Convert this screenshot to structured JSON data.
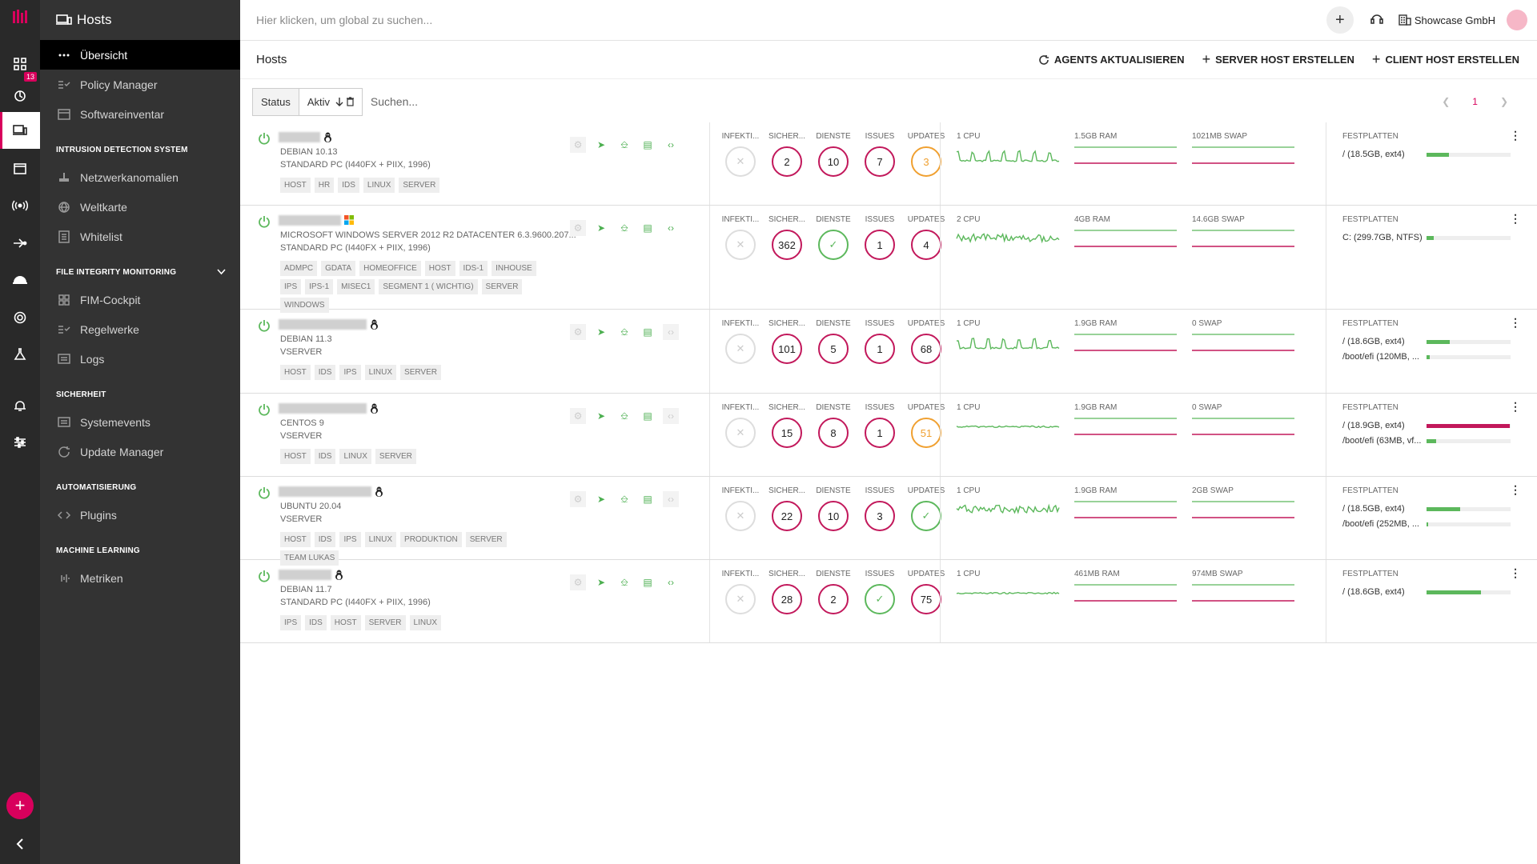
{
  "topbar": {
    "search_placeholder": "Hier klicken, um global zu suchen...",
    "company": "Showcase GmbH"
  },
  "rail": {
    "badge": "13"
  },
  "sidebar": {
    "header": "Hosts",
    "items_main": [
      {
        "label": "Übersicht",
        "icon": "dots-icon",
        "selected": true
      },
      {
        "label": "Policy Manager",
        "icon": "policy-icon"
      },
      {
        "label": "Softwareinventar",
        "icon": "inventory-icon"
      }
    ],
    "sections": [
      {
        "title": "INTRUSION DETECTION SYSTEM",
        "items": [
          {
            "label": "Netzwerkanomalien",
            "icon": "network-icon"
          },
          {
            "label": "Weltkarte",
            "icon": "globe-icon"
          },
          {
            "label": "Whitelist",
            "icon": "list-icon"
          }
        ]
      },
      {
        "title": "FILE INTEGRITY MONITORING",
        "items": [
          {
            "label": "FIM-Cockpit",
            "icon": "grid-icon"
          },
          {
            "label": "Regelwerke",
            "icon": "rules-icon"
          },
          {
            "label": "Logs",
            "icon": "logs-icon"
          }
        ]
      },
      {
        "title": "SICHERHEIT",
        "items": [
          {
            "label": "Systemevents",
            "icon": "events-icon"
          },
          {
            "label": "Update Manager",
            "icon": "update-icon"
          }
        ]
      },
      {
        "title": "AUTOMATISIERUNG",
        "items": [
          {
            "label": "Plugins",
            "icon": "code-icon"
          }
        ]
      },
      {
        "title": "MACHINE LEARNING",
        "items": [
          {
            "label": "Metriken",
            "icon": "metrics-icon"
          }
        ]
      }
    ]
  },
  "page": {
    "title": "Hosts",
    "actions": [
      "Agents aktualisieren",
      "Server Host erstellen",
      "Client Host erstellen"
    ]
  },
  "filter": {
    "key": "Status",
    "value": "Aktiv",
    "search_placeholder": "Suchen...",
    "page": "1"
  },
  "metric_labels": [
    "INFEKTI...",
    "SICHER...",
    "DIENSTE",
    "ISSUES",
    "UPDATES"
  ],
  "disk_label": "FESTPLATTEN",
  "colors": {
    "accent": "#d8005c",
    "green": "#5cb85c",
    "orange": "#f0a030",
    "ram": "#c2185b"
  },
  "hosts": [
    {
      "os": "linux",
      "line1": "DEBIAN 10.13",
      "line2": "STANDARD PC (I440FX + PIIX, 1996)",
      "tags": [
        "HOST",
        "HR",
        "IDS",
        "LINUX",
        "SERVER"
      ],
      "metrics": [
        {
          "v": "",
          "s": "gray",
          "x": true
        },
        {
          "v": "2",
          "s": "red"
        },
        {
          "v": "10",
          "s": "red"
        },
        {
          "v": "7",
          "s": "red"
        },
        {
          "v": "3",
          "s": "orange"
        }
      ],
      "cpu": "1 CPU",
      "ram": "1.5GB RAM",
      "swap": "1021MB SWAP",
      "disks": [
        {
          "name": "/ (18.5GB, ext4)",
          "pct": 0.27,
          "color": "#5cb85c"
        }
      ]
    },
    {
      "os": "windows",
      "line1": "MICROSOFT WINDOWS SERVER 2012 R2 DATACENTER 6.3.9600.207...",
      "line2": "STANDARD PC (I440FX + PIIX, 1996)",
      "tags": [
        "ADMPC",
        "GDATA",
        "HOMEOFFICE",
        "HOST",
        "IDS-1",
        "INHOUSE",
        "IPS",
        "IPS-1",
        "MISEC1",
        "SEGMENT 1 ( WICHTIG)",
        "SERVER",
        "WINDOWS"
      ],
      "metrics": [
        {
          "v": "",
          "s": "gray",
          "x": true
        },
        {
          "v": "362",
          "s": "red"
        },
        {
          "v": "",
          "s": "green",
          "check": true
        },
        {
          "v": "1",
          "s": "red"
        },
        {
          "v": "4",
          "s": "red"
        }
      ],
      "cpu": "2 CPU",
      "ram": "4GB RAM",
      "swap": "14.6GB SWAP",
      "disks": [
        {
          "name": "C: (299.7GB, NTFS)",
          "pct": 0.09,
          "color": "#5cb85c"
        }
      ]
    },
    {
      "os": "linux",
      "line1": "DEBIAN 11.3",
      "line2": "VSERVER",
      "tags": [
        "HOST",
        "IDS",
        "IPS",
        "LINUX",
        "SERVER"
      ],
      "metrics": [
        {
          "v": "",
          "s": "gray",
          "x": true
        },
        {
          "v": "101",
          "s": "red"
        },
        {
          "v": "5",
          "s": "red"
        },
        {
          "v": "1",
          "s": "red"
        },
        {
          "v": "68",
          "s": "red"
        }
      ],
      "cpu": "1 CPU",
      "ram": "1.9GB RAM",
      "swap": "0 SWAP",
      "disks": [
        {
          "name": "/ (18.6GB, ext4)",
          "pct": 0.28,
          "color": "#5cb85c"
        },
        {
          "name": "/boot/efi (120MB, ...",
          "pct": 0.04,
          "color": "#5cb85c"
        }
      ]
    },
    {
      "os": "linux",
      "line1": "CENTOS 9",
      "line2": "VSERVER",
      "tags": [
        "HOST",
        "IDS",
        "LINUX",
        "SERVER"
      ],
      "metrics": [
        {
          "v": "",
          "s": "gray",
          "x": true
        },
        {
          "v": "15",
          "s": "red"
        },
        {
          "v": "8",
          "s": "red"
        },
        {
          "v": "1",
          "s": "red"
        },
        {
          "v": "51",
          "s": "orange"
        }
      ],
      "cpu": "1 CPU",
      "ram": "1.9GB RAM",
      "swap": "0 SWAP",
      "disks": [
        {
          "name": "/ (18.9GB, ext4)",
          "pct": 0.99,
          "color": "#c2185b"
        },
        {
          "name": "/boot/efi (63MB, vf...",
          "pct": 0.11,
          "color": "#5cb85c"
        }
      ]
    },
    {
      "os": "linux",
      "line1": "UBUNTU 20.04",
      "line2": "VSERVER",
      "tags": [
        "HOST",
        "IDS",
        "IPS",
        "LINUX",
        "PRODUKTION",
        "SERVER",
        "TEAM LUKAS"
      ],
      "metrics": [
        {
          "v": "",
          "s": "gray",
          "x": true
        },
        {
          "v": "22",
          "s": "red"
        },
        {
          "v": "10",
          "s": "red"
        },
        {
          "v": "3",
          "s": "red"
        },
        {
          "v": "",
          "s": "green",
          "check": true
        }
      ],
      "cpu": "1 CPU",
      "ram": "1.9GB RAM",
      "swap": "2GB SWAP",
      "disks": [
        {
          "name": "/ (18.5GB, ext4)",
          "pct": 0.4,
          "color": "#5cb85c"
        },
        {
          "name": "/boot/efi (252MB, ...",
          "pct": 0.02,
          "color": "#5cb85c"
        }
      ]
    },
    {
      "os": "linux",
      "line1": "DEBIAN 11.7",
      "line2": "STANDARD PC (I440FX + PIIX, 1996)",
      "tags": [
        "IPS",
        "IDS",
        "HOST",
        "SERVER",
        "LINUX"
      ],
      "metrics": [
        {
          "v": "",
          "s": "gray",
          "x": true
        },
        {
          "v": "28",
          "s": "red"
        },
        {
          "v": "2",
          "s": "red"
        },
        {
          "v": "",
          "s": "green",
          "check": true
        },
        {
          "v": "75",
          "s": "red"
        }
      ],
      "cpu": "1 CPU",
      "ram": "461MB RAM",
      "swap": "974MB SWAP",
      "disks": [
        {
          "name": "/ (18.6GB, ext4)",
          "pct": 0.65,
          "color": "#5cb85c"
        }
      ]
    }
  ]
}
